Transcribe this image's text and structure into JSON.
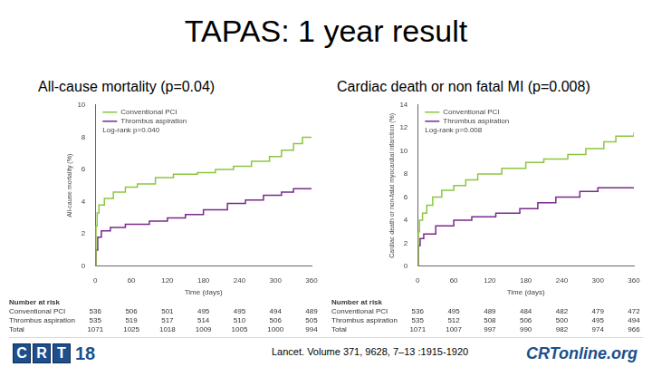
{
  "slide": {
    "title": "TAPAS: 1 year result",
    "citation": "Lancet. Volume 371, 9628, 7–13 :1915-1920",
    "logos": [
      "CRT18",
      "CRTonline.org"
    ]
  },
  "chart_data": [
    {
      "type": "line",
      "title": "All-cause mortality (p=0.04)",
      "x_label": "Time (days)",
      "y_label": "All-cause mortality (%)",
      "xlim": [
        0,
        360
      ],
      "xticks": [
        0,
        60,
        120,
        180,
        240,
        300,
        360
      ],
      "ylim": [
        0,
        10
      ],
      "yticks": [
        0,
        2,
        4,
        6,
        8,
        10
      ],
      "grid": false,
      "legend": "top-left",
      "annotation": "Log-rank p=0.040",
      "series": [
        {
          "name": "Conventional PCI",
          "color": "#8cc63e",
          "line_style": "step",
          "marker": "none",
          "x": [
            0,
            1,
            3,
            6,
            15,
            30,
            50,
            70,
            100,
            130,
            170,
            200,
            230,
            260,
            290,
            310,
            330,
            345,
            360
          ],
          "values": [
            0,
            2.5,
            3.3,
            3.8,
            4.2,
            4.6,
            4.9,
            5.1,
            5.5,
            5.7,
            5.8,
            6.0,
            6.2,
            6.5,
            6.8,
            7.2,
            7.6,
            8.0,
            8.0
          ]
        },
        {
          "name": "Thrombus aspiration",
          "color": "#7a2a8c",
          "line_style": "step",
          "marker": "none",
          "x": [
            0,
            1,
            4,
            10,
            25,
            50,
            90,
            120,
            150,
            180,
            220,
            250,
            280,
            310,
            330,
            360
          ],
          "values": [
            0,
            1.0,
            1.8,
            2.2,
            2.4,
            2.6,
            2.8,
            3.0,
            3.2,
            3.5,
            3.9,
            4.1,
            4.4,
            4.6,
            4.8,
            4.8
          ]
        }
      ],
      "number_at_risk": {
        "title": "Number at risk",
        "rows": [
          {
            "name": "Conventional PCI",
            "values": [
              536,
              506,
              501,
              495,
              495,
              494,
              489
            ]
          },
          {
            "name": "Thrombus aspiration",
            "values": [
              535,
              519,
              517,
              514,
              510,
              506,
              505
            ]
          },
          {
            "name": "Total",
            "values": [
              1071,
              1025,
              1018,
              1009,
              1005,
              1000,
              994
            ]
          }
        ]
      }
    },
    {
      "type": "line",
      "title": "Cardiac death or non fatal MI (p=0.008)",
      "x_label": "Time (days)",
      "y_label": "Cardiac death or non-fatal myocardial infarction (%)",
      "xlim": [
        0,
        360
      ],
      "xticks": [
        0,
        60,
        120,
        180,
        240,
        300,
        360
      ],
      "ylim": [
        0,
        14
      ],
      "yticks": [
        0,
        2,
        4,
        6,
        8,
        10,
        12,
        14
      ],
      "grid": false,
      "legend": "top-left",
      "annotation": "Log-rank p=0.008",
      "series": [
        {
          "name": "Conventional PCI",
          "color": "#8cc63e",
          "line_style": "step",
          "marker": "none",
          "x": [
            0,
            1,
            3,
            8,
            15,
            25,
            40,
            60,
            80,
            100,
            140,
            180,
            210,
            250,
            280,
            310,
            330,
            360
          ],
          "values": [
            0,
            3.0,
            4.0,
            4.6,
            5.3,
            6.0,
            6.6,
            7.0,
            7.5,
            8.0,
            8.5,
            9.0,
            9.3,
            9.7,
            10.2,
            10.8,
            11.3,
            11.6
          ]
        },
        {
          "name": "Thrombus aspiration",
          "color": "#7a2a8c",
          "line_style": "step",
          "marker": "none",
          "x": [
            0,
            1,
            4,
            10,
            30,
            60,
            90,
            130,
            170,
            200,
            230,
            270,
            300,
            360
          ],
          "values": [
            0,
            1.8,
            2.4,
            2.8,
            3.5,
            4.0,
            4.3,
            4.6,
            5.0,
            5.5,
            6.0,
            6.5,
            6.8,
            6.8
          ]
        }
      ],
      "number_at_risk": {
        "title": "Number at risk",
        "rows": [
          {
            "name": "Conventional PCI",
            "values": [
              536,
              495,
              489,
              484,
              482,
              479,
              472
            ]
          },
          {
            "name": "Thrombus aspiration",
            "values": [
              535,
              512,
              508,
              506,
              500,
              495,
              494
            ]
          },
          {
            "name": "Total",
            "values": [
              1071,
              1007,
              997,
              990,
              982,
              974,
              966
            ]
          }
        ]
      }
    }
  ]
}
